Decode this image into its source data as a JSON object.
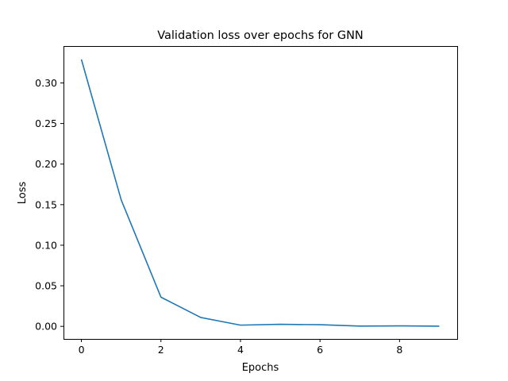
{
  "chart_data": {
    "type": "line",
    "title": "Validation loss over epochs for GNN",
    "xlabel": "Epochs",
    "ylabel": "Loss",
    "xlim": [
      -0.45,
      9.45
    ],
    "ylim": [
      -0.0155,
      0.3455
    ],
    "xticks": [
      0,
      2,
      4,
      6,
      8
    ],
    "xtick_labels": [
      "0",
      "2",
      "4",
      "6",
      "8"
    ],
    "yticks": [
      0.0,
      0.05,
      0.1,
      0.15,
      0.2,
      0.25,
      0.3
    ],
    "ytick_labels": [
      "0.00",
      "0.05",
      "0.10",
      "0.15",
      "0.20",
      "0.25",
      "0.30"
    ],
    "grid": false,
    "series": [
      {
        "name": "Validation loss",
        "color": "#1f77b4",
        "x": [
          0,
          1,
          2,
          3,
          4,
          5,
          6,
          7,
          8,
          9
        ],
        "y": [
          0.329,
          0.156,
          0.036,
          0.011,
          0.0015,
          0.0025,
          0.002,
          0.0003,
          0.0006,
          0.0002
        ]
      }
    ]
  }
}
